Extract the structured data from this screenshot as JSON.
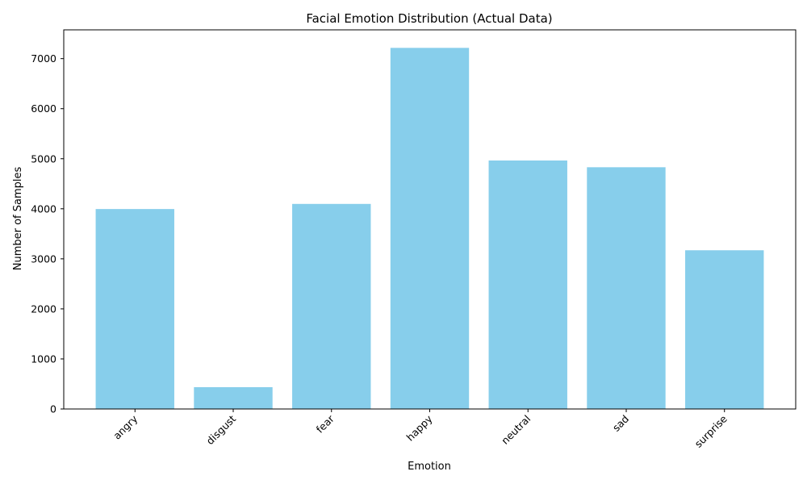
{
  "chart_data": {
    "type": "bar",
    "title": "Facial Emotion Distribution (Actual Data)",
    "xlabel": "Emotion",
    "ylabel": "Number of Samples",
    "categories": [
      "angry",
      "disgust",
      "fear",
      "happy",
      "neutral",
      "sad",
      "surprise"
    ],
    "values": [
      3995,
      436,
      4097,
      7215,
      4965,
      4830,
      3171
    ],
    "ylim": [
      0,
      7575
    ],
    "yticks": [
      0,
      1000,
      2000,
      3000,
      4000,
      5000,
      6000,
      7000
    ],
    "ytick_labels": [
      "0",
      "1000",
      "2000",
      "3000",
      "4000",
      "5000",
      "6000",
      "7000"
    ],
    "bar_color": "#87ceeb",
    "grid": false,
    "legend": "none"
  }
}
